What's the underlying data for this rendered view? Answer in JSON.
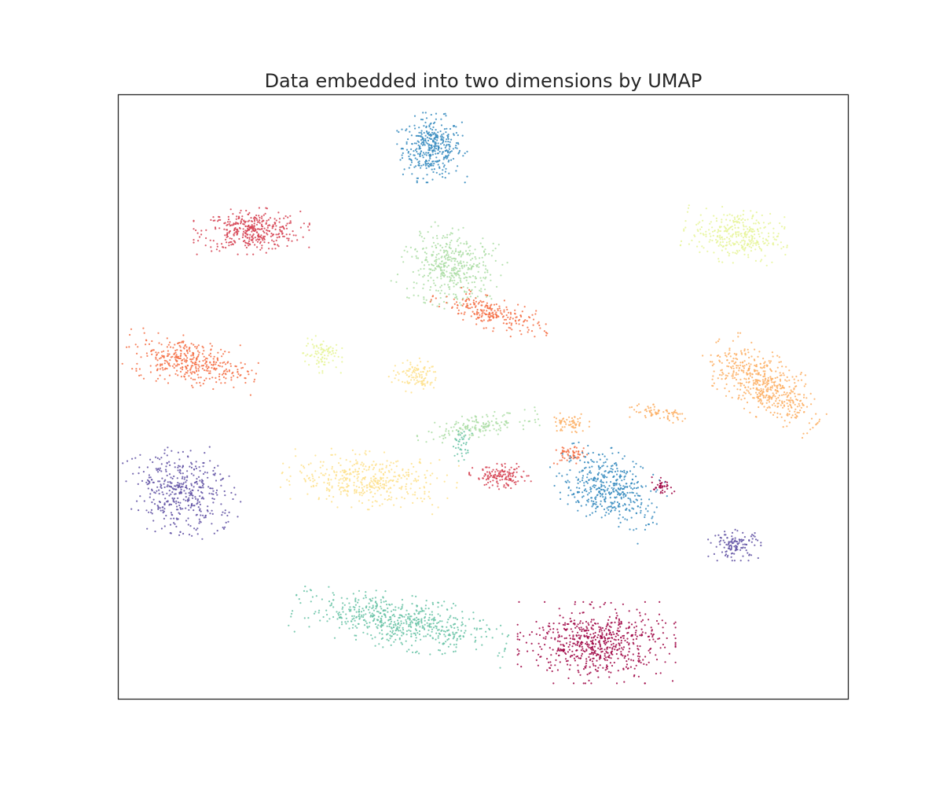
{
  "chart_data": {
    "type": "scatter",
    "title": "Data embedded into two dimensions by UMAP",
    "xlabel": "",
    "ylabel": "",
    "xlim": [
      0,
      100
    ],
    "ylim": [
      0,
      100
    ],
    "x_ticks_shown": false,
    "y_ticks_shown": false,
    "grid": false,
    "legend": "none",
    "colormap": "Spectral",
    "series": [
      {
        "color": "#3288bd",
        "clusters": [
          {
            "cx": 43.0,
            "cy": 91.2,
            "sx": 2.0,
            "sy": 2.4,
            "n": 380,
            "rot": 0
          }
        ]
      },
      {
        "color": "#d53e4f",
        "clusters": [
          {
            "cx": 18.3,
            "cy": 77.4,
            "sx": 3.3,
            "sy": 1.6,
            "n": 380,
            "rot": 0
          }
        ]
      },
      {
        "color": "#abdda4",
        "clusters": [
          {
            "cx": 45.6,
            "cy": 71.4,
            "sx": 2.9,
            "sy": 2.8,
            "n": 420,
            "rot": -20
          }
        ]
      },
      {
        "color": "#f46d43",
        "clusters": [
          {
            "cx": 51.0,
            "cy": 63.8,
            "sx": 3.5,
            "sy": 1.1,
            "n": 230,
            "rot": -20
          }
        ]
      },
      {
        "color": "#e6f598",
        "clusters": [
          {
            "cx": 84.6,
            "cy": 76.8,
            "sx": 3.0,
            "sy": 2.0,
            "n": 330,
            "rot": -10
          }
        ]
      },
      {
        "color": "#f46d43",
        "clusters": [
          {
            "cx": 10.0,
            "cy": 55.8,
            "sx": 3.8,
            "sy": 1.7,
            "n": 380,
            "rot": -12
          }
        ]
      },
      {
        "color": "#e6f598",
        "clusters": [
          {
            "cx": 27.8,
            "cy": 57.1,
            "sx": 1.2,
            "sy": 1.3,
            "n": 90,
            "rot": 0
          }
        ]
      },
      {
        "color": "#fee08b",
        "clusters": [
          {
            "cx": 40.7,
            "cy": 53.5,
            "sx": 1.6,
            "sy": 1.2,
            "n": 110,
            "rot": 0
          }
        ]
      },
      {
        "color": "#fdae61",
        "clusters": [
          {
            "cx": 88.5,
            "cy": 52.0,
            "sx": 4.0,
            "sy": 2.0,
            "n": 520,
            "rot": -40
          },
          {
            "cx": 74.0,
            "cy": 47.2,
            "sx": 2.3,
            "sy": 0.6,
            "n": 70,
            "rot": -8
          },
          {
            "cx": 61.8,
            "cy": 45.6,
            "sx": 1.2,
            "sy": 0.8,
            "n": 60,
            "rot": 0
          }
        ]
      },
      {
        "color": "#abdda4",
        "clusters": [
          {
            "cx": 49.2,
            "cy": 45.2,
            "sx": 3.5,
            "sy": 0.8,
            "n": 160,
            "rot": 10
          }
        ]
      },
      {
        "color": "#66c2a5",
        "clusters": [
          {
            "cx": 38.7,
            "cy": 12.8,
            "sx": 6.2,
            "sy": 1.9,
            "n": 600,
            "rot": -12
          },
          {
            "cx": 47.0,
            "cy": 42.3,
            "sx": 0.6,
            "sy": 1.2,
            "n": 40,
            "rot": 0
          }
        ]
      },
      {
        "color": "#5e4fa2",
        "clusters": [
          {
            "cx": 8.6,
            "cy": 34.2,
            "sx": 3.0,
            "sy": 3.4,
            "n": 420,
            "rot": 30
          },
          {
            "cx": 84.6,
            "cy": 25.6,
            "sx": 1.6,
            "sy": 1.1,
            "n": 120,
            "rot": 0
          }
        ]
      },
      {
        "color": "#fee08b",
        "clusters": [
          {
            "cx": 34.4,
            "cy": 36.2,
            "sx": 5.0,
            "sy": 2.0,
            "n": 420,
            "rot": -5
          }
        ]
      },
      {
        "color": "#d53e4f",
        "clusters": [
          {
            "cx": 52.4,
            "cy": 36.8,
            "sx": 1.8,
            "sy": 0.9,
            "n": 140,
            "rot": 0
          }
        ]
      },
      {
        "color": "#f46d43",
        "clusters": [
          {
            "cx": 61.8,
            "cy": 40.4,
            "sx": 1.0,
            "sy": 0.8,
            "n": 60,
            "rot": 0
          }
        ]
      },
      {
        "color": "#3288bd",
        "clusters": [
          {
            "cx": 67.3,
            "cy": 34.8,
            "sx": 3.6,
            "sy": 2.3,
            "n": 440,
            "rot": -38
          }
        ]
      },
      {
        "color": "#9e0142",
        "clusters": [
          {
            "cx": 65.5,
            "cy": 9.4,
            "sx": 4.5,
            "sy": 2.8,
            "n": 640,
            "rot": 0
          },
          {
            "cx": 74.4,
            "cy": 35.2,
            "sx": 0.8,
            "sy": 0.5,
            "n": 40,
            "rot": -30
          }
        ]
      }
    ]
  }
}
